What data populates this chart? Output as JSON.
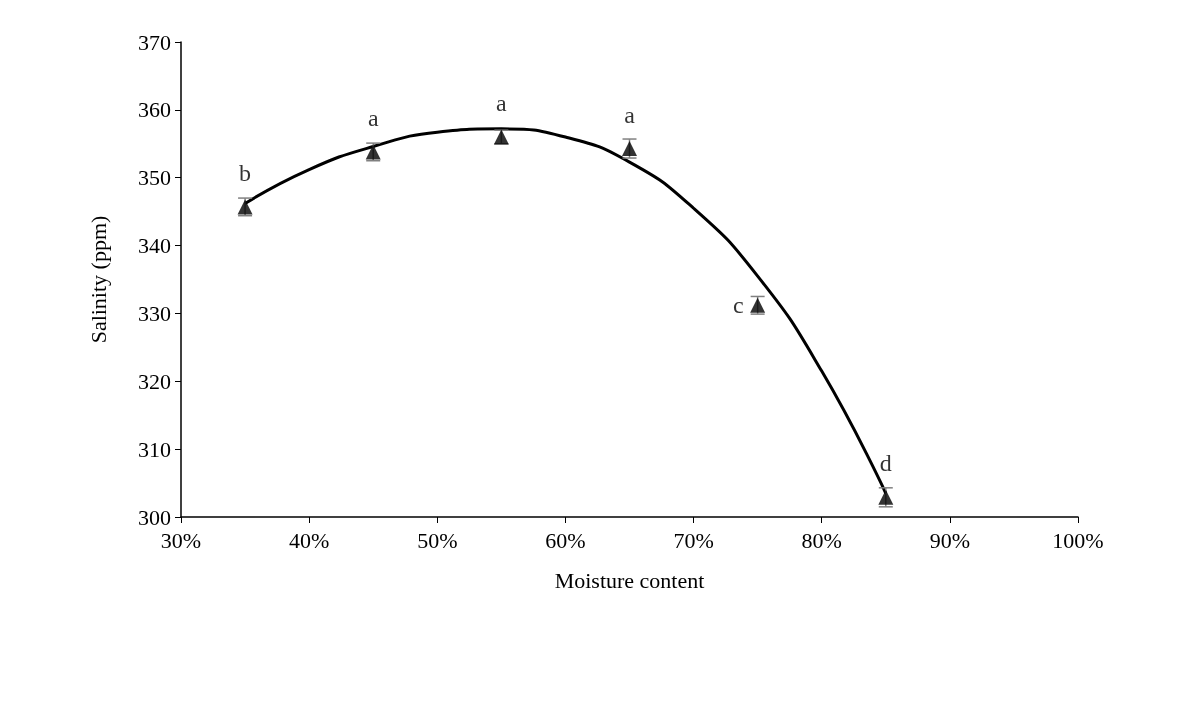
{
  "chart_data": {
    "type": "scatter",
    "xlabel": "Moisture content",
    "ylabel": "Salinity (ppm)",
    "xlim": [
      30,
      100
    ],
    "xticks": [
      {
        "value": 30,
        "label": "30%"
      },
      {
        "value": 40,
        "label": "40%"
      },
      {
        "value": 50,
        "label": "50%"
      },
      {
        "value": 60,
        "label": "60%"
      },
      {
        "value": 70,
        "label": "70%"
      },
      {
        "value": 80,
        "label": "80%"
      },
      {
        "value": 90,
        "label": "90%"
      },
      {
        "value": 100,
        "label": "100%"
      }
    ],
    "ylim": [
      300,
      370
    ],
    "yticks": [
      300,
      310,
      320,
      330,
      340,
      350,
      360,
      370
    ],
    "grid": false,
    "marker": "triangle",
    "series": [
      {
        "color": "#000000",
        "x": [
          35,
          45,
          55,
          65,
          75,
          85
        ],
        "values": [
          345.7,
          353.8,
          356.0,
          354.3,
          331.2,
          302.9
        ],
        "errors": [
          1.3,
          1.3,
          1.0,
          1.4,
          1.3,
          1.4
        ]
      },
      {
        "type": "line",
        "color": "#000000",
        "marker": "none",
        "x": [
          35,
          40,
          45,
          50,
          55,
          60,
          65,
          70,
          75,
          80,
          85
        ],
        "values": [
          346.2,
          351.2,
          354.6,
          356.7,
          357.2,
          356.0,
          352.3,
          345.5,
          335.5,
          321.5,
          303.5
        ]
      }
    ],
    "annotations": [
      {
        "text": "b",
        "x": 35,
        "y": 345.7
      },
      {
        "text": "a",
        "x": 45,
        "y": 353.8
      },
      {
        "text": "a",
        "x": 55,
        "y": 356.0
      },
      {
        "text": "a",
        "x": 65,
        "y": 354.3
      },
      {
        "text": "c",
        "x": 75,
        "y": 331.2
      },
      {
        "text": "d",
        "x": 85,
        "y": 302.9
      }
    ]
  }
}
